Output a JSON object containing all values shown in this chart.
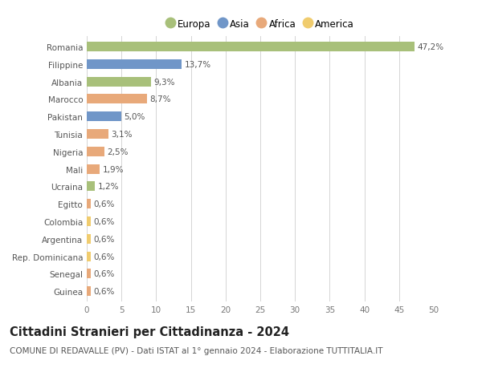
{
  "countries": [
    "Romania",
    "Filippine",
    "Albania",
    "Marocco",
    "Pakistan",
    "Tunisia",
    "Nigeria",
    "Mali",
    "Ucraina",
    "Egitto",
    "Colombia",
    "Argentina",
    "Rep. Dominicana",
    "Senegal",
    "Guinea"
  ],
  "values": [
    47.2,
    13.7,
    9.3,
    8.7,
    5.0,
    3.1,
    2.5,
    1.9,
    1.2,
    0.6,
    0.6,
    0.6,
    0.6,
    0.6,
    0.6
  ],
  "labels": [
    "47,2%",
    "13,7%",
    "9,3%",
    "8,7%",
    "5,0%",
    "3,1%",
    "2,5%",
    "1,9%",
    "1,2%",
    "0,6%",
    "0,6%",
    "0,6%",
    "0,6%",
    "0,6%",
    "0,6%"
  ],
  "continents": [
    "Europa",
    "Asia",
    "Europa",
    "Africa",
    "Asia",
    "Africa",
    "Africa",
    "Africa",
    "Europa",
    "Africa",
    "America",
    "America",
    "America",
    "Africa",
    "Africa"
  ],
  "continent_colors": {
    "Europa": "#a8c07a",
    "Asia": "#7096c8",
    "Africa": "#e8a97a",
    "America": "#f0cc6e"
  },
  "legend_order": [
    "Europa",
    "Asia",
    "Africa",
    "America"
  ],
  "title": "Cittadini Stranieri per Cittadinanza - 2024",
  "subtitle": "COMUNE DI REDAVALLE (PV) - Dati ISTAT al 1° gennaio 2024 - Elaborazione TUTTITALIA.IT",
  "xlim": [
    0,
    50
  ],
  "xticks": [
    0,
    5,
    10,
    15,
    20,
    25,
    30,
    35,
    40,
    45,
    50
  ],
  "background_color": "#ffffff",
  "grid_color": "#d5d5d5",
  "bar_height": 0.55,
  "title_fontsize": 10.5,
  "subtitle_fontsize": 7.5,
  "label_fontsize": 7.5,
  "tick_fontsize": 7.5,
  "legend_fontsize": 8.5
}
